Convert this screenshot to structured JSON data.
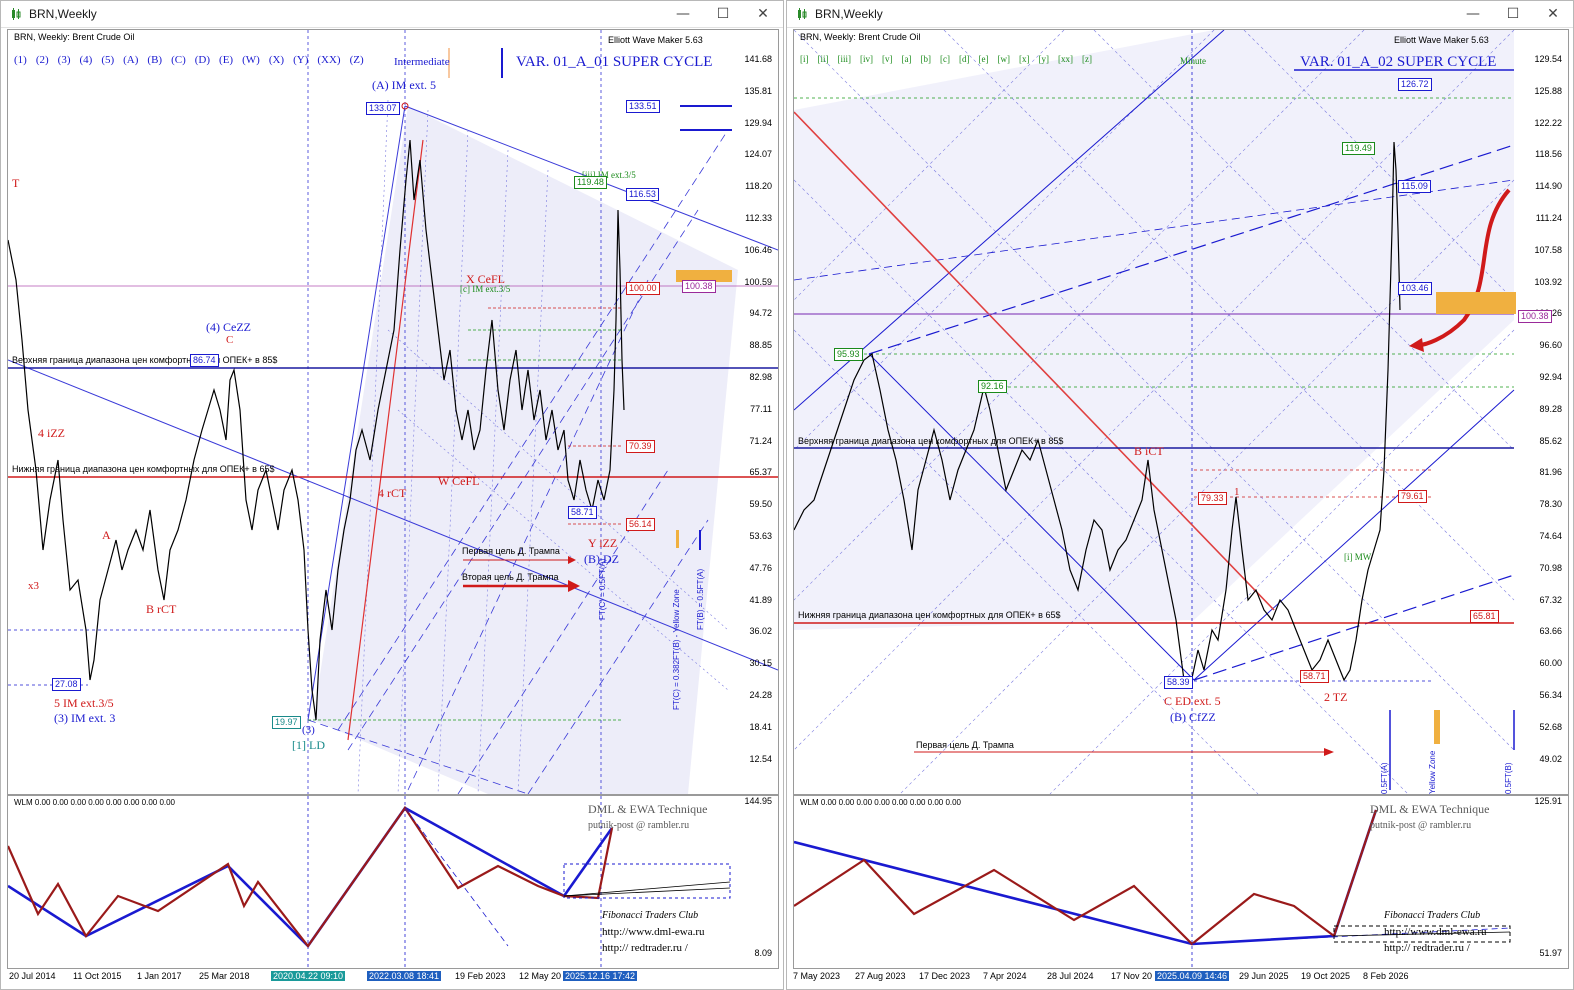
{
  "left": {
    "title": "BRN,Weekly",
    "symbol": "BRN, Weekly:  Brent Crude Oil",
    "ewm": "Elliott Wave Maker 5.63",
    "degrees": [
      "(1)",
      "(2)",
      "(3)",
      "(4)",
      "(5)",
      "(A)",
      "(B)",
      "(C)",
      "(D)",
      "(E)",
      "(W)",
      "(X)",
      "(Y)",
      "(XX)",
      "(Z)"
    ],
    "degree_name": "Intermediate",
    "variant": "VAR. 01_A_01 SUPER CYCLE",
    "yticks": [
      "141.68",
      "135.81",
      "129.94",
      "124.07",
      "118.20",
      "112.33",
      "106.46",
      "100.59",
      "94.72",
      "88.85",
      "82.98",
      "77.11",
      "71.24",
      "65.37",
      "59.50",
      "53.63",
      "47.76",
      "41.89",
      "36.02",
      "30.15",
      "24.28",
      "18.41",
      "12.54"
    ],
    "tags": [
      {
        "text": "133.51",
        "color": "#1a1ad0"
      },
      {
        "text": "116.53",
        "color": "#1a1ad0"
      },
      {
        "text": "100.38",
        "color": "#9a2a9a"
      },
      {
        "text": "100.00",
        "color": "#d01a1a"
      },
      {
        "text": "70.39",
        "color": "#d01a1a"
      },
      {
        "text": "56.14",
        "color": "#d01a1a"
      }
    ],
    "chart_tags": [
      "133.07",
      "119.48",
      "86.74",
      "58.71",
      "27.08",
      "19.97"
    ],
    "upper_line": "Верхняя граница диапазона цен комфортных для ОПЕК+ в 85$",
    "lower_line": "Нижняя граница диапазона цен комфортных для ОПЕК+ в 65$",
    "target1": "Первая цель Д. Трампа",
    "target2": "Вторая цель Д. Трампа",
    "waves": {
      "a_im": "(A) IM ext. 5",
      "ceZZ": "(4) CeZZ",
      "c": "C",
      "izz4": "4 iZZ",
      "x3": "x3",
      "t": "T",
      "im5": "5 IM ext.3/5",
      "im3": "(3) IM ext. 3",
      "brct": "B rCT",
      "a_red": "A",
      "ld": "[1] LD",
      "three": "(3)",
      "ct4": "4 rCT",
      "wcefl": "W CeFL",
      "xcefl": "X CeFL",
      "yizz": "Y iZZ",
      "bdz": "(B) DZ",
      "imext": "[iii] IM ext.3/5",
      "imext2": "[c] IM ext.3/5"
    },
    "xticks": [
      "20 Jul 2014",
      "11 Oct 2015",
      "1 Jan 2017",
      "25 Mar 2018",
      "2020.04.22 09:10",
      "2022.03.08 18:41",
      "19 Feb 2023",
      "12 May 20",
      "2025.12.16 17:42"
    ],
    "wlm": "WLM 0.00 0.00 0.00 0.00 0.00 0.00 0.00 0.00",
    "ind_y": [
      "144.95",
      "8.09"
    ],
    "dml": "DML & EWA Technique",
    "email": "putnik-post @ rambler.ru",
    "ftc": "Fibonacci    Traders    Club",
    "site1": "http://www.dml-ewa.ru",
    "site2": "http:// redtrader.ru /",
    "vert_labels": [
      "FT(C) = 0.5FT(A)",
      "FT(C) = 0.382FT(B) - Yellow Zone",
      "FT(B) = 0.5FT(A)"
    ]
  },
  "right": {
    "title": "BRN,Weekly",
    "symbol": "BRN, Weekly:  Brent Crude Oil",
    "ewm": "Elliott Wave Maker 5.63",
    "degrees": [
      "[i]",
      "[ii]",
      "[iii]",
      "[iv]",
      "[v]",
      "[a]",
      "[b]",
      "[c]",
      "[d]",
      "[e]",
      "[w]",
      "[x]",
      "[y]",
      "[xx]",
      "[z]"
    ],
    "degree_name": "Minute",
    "variant": "VAR. 01_A_02 SUPER CYCLE",
    "yticks": [
      "129.54",
      "125.88",
      "122.22",
      "118.56",
      "114.90",
      "111.24",
      "107.58",
      "103.92",
      "100.26",
      "96.60",
      "92.94",
      "89.28",
      "85.62",
      "81.96",
      "78.30",
      "74.64",
      "70.98",
      "67.32",
      "63.66",
      "60.00",
      "56.34",
      "52.68",
      "49.02"
    ],
    "tags": [
      {
        "text": "126.72",
        "color": "#1a1ad0"
      },
      {
        "text": "115.09",
        "color": "#1a1ad0"
      },
      {
        "text": "103.46",
        "color": "#1a1ad0"
      },
      {
        "text": "100.38",
        "color": "#9a2a9a"
      },
      {
        "text": "79.61",
        "color": "#d01a1a"
      },
      {
        "text": "65.81",
        "color": "#d01a1a"
      }
    ],
    "chart_tags": [
      "119.49",
      "95.93",
      "92.16",
      "79.33",
      "58.39",
      "58.71"
    ],
    "upper_line": "Верхняя граница диапазона цен комфортных для ОПЕК+ в 85$",
    "lower_line": "Нижняя граница диапазона цен комфортных для ОПЕК+ в 65$",
    "target1": "Первая цель Д. Трампа",
    "waves": {
      "bict": "B iCT",
      "ced": "C ED ext. 5",
      "bcfzz": "(B) CfZZ",
      "one": "1",
      "tz": "2 TZ",
      "mw": "[i] MW"
    },
    "xticks": [
      "7 May 2023",
      "27 Aug 2023",
      "17 Dec 2023",
      "7 Apr 2024",
      "28 Jul 2024",
      "17 Nov 20",
      "2025.04.09 14:46",
      "29 Jun 2025",
      "19 Oct 2025",
      "8 Feb 2026"
    ],
    "wlm": "WLM 0.00 0.00 0.00 0.00 0.00 0.00 0.00 0.00",
    "ind_y": [
      "125.91",
      "51.97"
    ],
    "dml": "DML & EWA Technique",
    "email": "putnik-post @ rambler.ru",
    "ftc": "Fibonacci    Traders    Club",
    "site1": "http://www.dml-ewa.ru",
    "site2": "http:// redtrader.ru /",
    "vert_labels": [
      "0.5FT(A)",
      "Yellow Zone",
      "0.5FT(B)"
    ]
  }
}
